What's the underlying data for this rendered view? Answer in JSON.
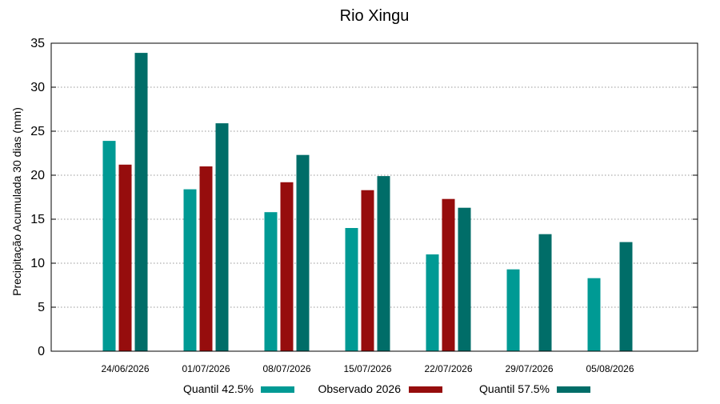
{
  "chart_data": {
    "type": "bar",
    "title": "Rio Xingu",
    "xlabel": "",
    "ylabel": "Precipitação Acumulada 30 dias (mm)",
    "ylim": [
      0,
      35
    ],
    "yticks": [
      0,
      5,
      10,
      15,
      20,
      25,
      30,
      35
    ],
    "grid": true,
    "legend_position": "bottom",
    "categories": [
      "24/06/2026",
      "01/07/2026",
      "08/07/2026",
      "15/07/2026",
      "22/07/2026",
      "29/07/2026",
      "05/08/2026"
    ],
    "series": [
      {
        "name": "Quantil 42.5%",
        "color": "#009a94",
        "values": [
          23.9,
          18.4,
          15.8,
          14.0,
          11.0,
          9.3,
          8.3
        ]
      },
      {
        "name": "Observado 2026",
        "color": "#960d0d",
        "values": [
          21.2,
          21.0,
          19.2,
          18.3,
          17.3,
          null,
          null
        ]
      },
      {
        "name": "Quantil 57.5%",
        "color": "#006d68",
        "values": [
          33.9,
          25.9,
          22.3,
          19.9,
          16.3,
          13.3,
          12.4
        ]
      }
    ]
  }
}
